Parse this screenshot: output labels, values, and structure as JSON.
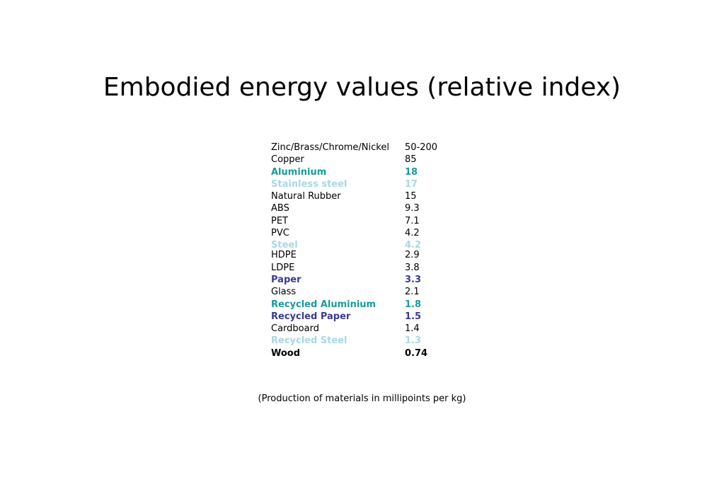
{
  "slide": {
    "title": "Embodied energy values (relative index)",
    "footnote": "(Production of materials in millipoints per kg)"
  },
  "colors": {
    "default": "#000000",
    "teal": "#1a9a9a",
    "light_blue": "#a8d8e0",
    "navy": "#3a3a92"
  },
  "materials": [
    {
      "name": "Zinc/Brass/Chrome/Nickel",
      "value": "50-200",
      "color": "default",
      "bold": false
    },
    {
      "name": "Copper",
      "value": "85",
      "color": "default",
      "bold": false
    },
    {
      "name": "Aluminium",
      "value": "18",
      "color": "teal",
      "bold": true
    },
    {
      "name": "Stainless steel",
      "value": "17",
      "color": "light_blue",
      "bold": true
    },
    {
      "name": "Natural Rubber",
      "value": "15",
      "color": "default",
      "bold": false
    },
    {
      "name": "ABS",
      "value": "9.3",
      "color": "default",
      "bold": false
    },
    {
      "name": "PET",
      "value": "7.1",
      "color": "default",
      "bold": false
    },
    {
      "name": "PVC",
      "value": "4.2",
      "color": "default",
      "bold": false
    },
    {
      "name": "Steel",
      "value": "4.2",
      "color": "light_blue",
      "bold": true
    },
    {
      "name": "HDPE",
      "value": "2.9",
      "color": "default",
      "bold": false
    },
    {
      "name": "LDPE",
      "value": "3.8",
      "color": "default",
      "bold": false
    },
    {
      "name": "Paper",
      "value": "3.3",
      "color": "navy",
      "bold": true
    },
    {
      "name": "Glass",
      "value": "2.1",
      "color": "default",
      "bold": false
    },
    {
      "name": "Recycled Aluminium",
      "value": "1.8",
      "color": "teal",
      "bold": true
    },
    {
      "name": "Recycled Paper",
      "value": "1.5",
      "color": "navy",
      "bold": true
    },
    {
      "name": "Cardboard",
      "value": "1.4",
      "color": "default",
      "bold": false
    },
    {
      "name": "Recycled Steel",
      "value": "1.3",
      "color": "light_blue",
      "bold": true
    },
    {
      "name": "Wood",
      "value": "0.74",
      "color": "default",
      "bold": true
    }
  ]
}
